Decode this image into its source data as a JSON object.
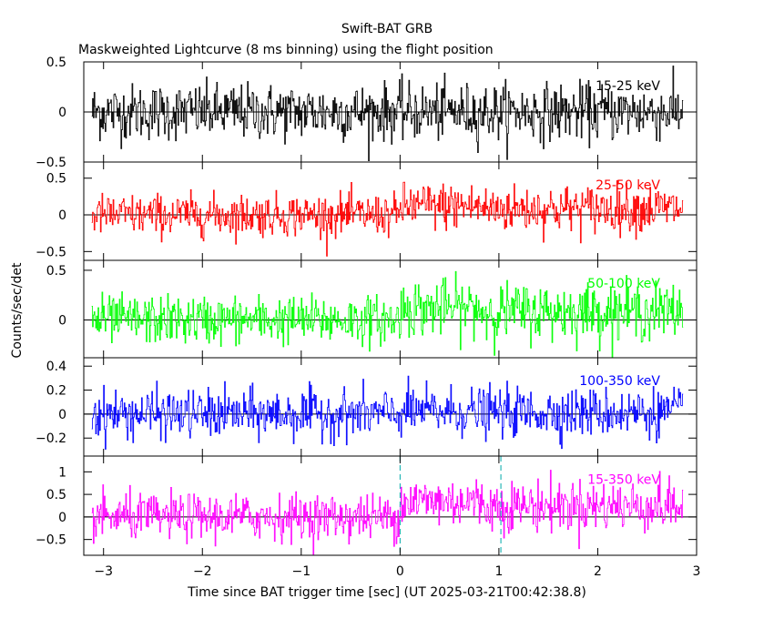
{
  "title": "Swift-BAT GRB",
  "subtitle": "Maskweighted Lightcurve (8 ms binning) using the flight position",
  "chart_data": {
    "type": "line",
    "title": "Swift-BAT GRB",
    "subtitle": "Maskweighted Lightcurve (8 ms binning) using the flight position",
    "xlabel": "Time since BAT trigger time [sec] (UT 2025-03-21T00:42:38.8)",
    "ylabel": "Counts/sec/det",
    "xlim": [
      -3.2,
      3.0
    ],
    "x_ticks": [
      -3,
      -2,
      -1,
      0,
      1,
      2,
      3
    ],
    "x_tick_labels": [
      "−3",
      "−2",
      "−1",
      "0",
      "1",
      "2",
      "3"
    ],
    "data_start": -3.12,
    "data_end": 2.86,
    "bin_width": 0.008,
    "trigger_line_x": 0,
    "end_marker_x": 1.02,
    "panels": [
      {
        "name": "15-25 keV",
        "color": "#000000",
        "ylim": [
          -0.5,
          0.5
        ],
        "yticks": [
          -0.5,
          0,
          0.5
        ],
        "ytick_labels": [
          "−0.5",
          "0",
          "0.5"
        ],
        "noise_sigma_pre": 0.14,
        "noise_sigma_post": 0.14,
        "burst_level": 0.0
      },
      {
        "name": "25-50 keV",
        "color": "#ff0000",
        "ylim": [
          -0.62,
          0.72
        ],
        "yticks": [
          -0.5,
          0,
          0.5
        ],
        "ytick_labels": [
          "−0.5",
          "0",
          "0.5"
        ],
        "noise_sigma_pre": 0.14,
        "noise_sigma_post": 0.16,
        "burst_level": 0.12
      },
      {
        "name": "50-100 keV",
        "color": "#00ff00",
        "ylim": [
          -0.38,
          0.6
        ],
        "yticks": [
          0,
          0.5
        ],
        "ytick_labels": [
          "0",
          "0.5"
        ],
        "noise_sigma_pre": 0.12,
        "noise_sigma_post": 0.14,
        "burst_level": 0.12
      },
      {
        "name": "100-350 keV",
        "color": "#0000ff",
        "ylim": [
          -0.35,
          0.47
        ],
        "yticks": [
          -0.2,
          0,
          0.2,
          0.4
        ],
        "ytick_labels": [
          "−0.2",
          "0",
          "0.2",
          "0.4"
        ],
        "noise_sigma_pre": 0.1,
        "noise_sigma_post": 0.1,
        "burst_level": 0.02
      },
      {
        "name": "15-350 keV",
        "color": "#ff00ff",
        "ylim": [
          -0.85,
          1.35
        ],
        "yticks": [
          -0.5,
          0,
          0.5,
          1
        ],
        "ytick_labels": [
          "−0.5",
          "0",
          "0.5",
          "1"
        ],
        "noise_sigma_pre": 0.25,
        "noise_sigma_post": 0.28,
        "burst_level": 0.35
      }
    ]
  }
}
